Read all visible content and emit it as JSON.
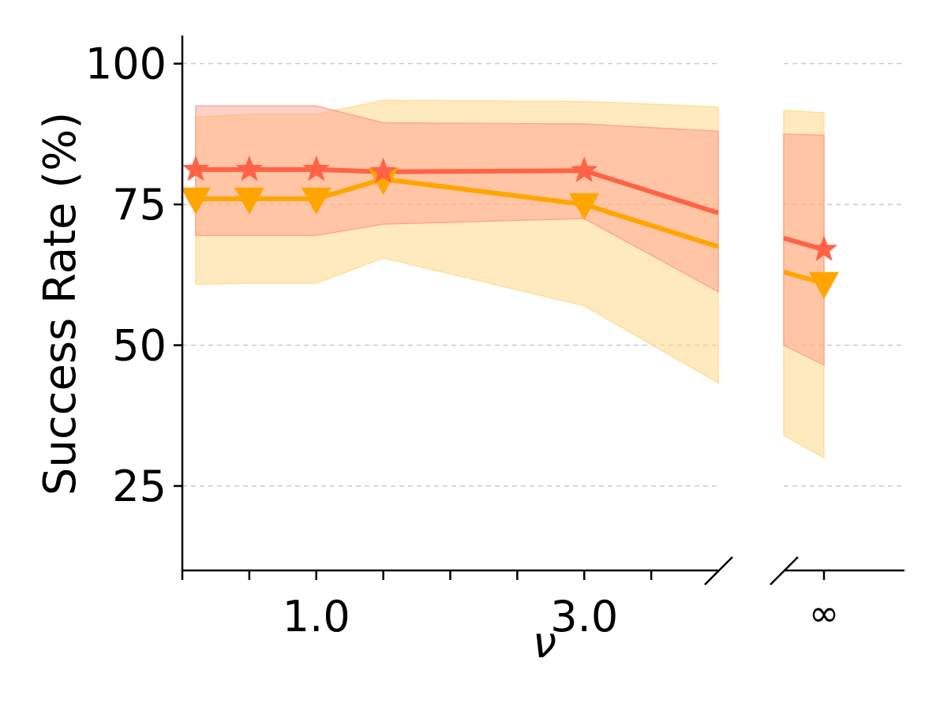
{
  "chart_data": {
    "type": "line",
    "ylabel": "Success Rate (%)",
    "xlabel": "ν",
    "ylim": [
      10,
      105
    ],
    "yticks": [
      25,
      50,
      75,
      100
    ],
    "grid": "horizontal dashed",
    "broken_x_axis": true,
    "left_panel": {
      "xlim": [
        0,
        4.0
      ],
      "xtick_values": [
        0,
        0.5,
        1.0,
        1.5,
        2.0,
        2.5,
        3.0,
        3.5
      ],
      "xtick_labels": [
        {
          "x": 1.0,
          "label": "1.0"
        },
        {
          "x": 3.0,
          "label": "3.0"
        }
      ]
    },
    "right_panel": {
      "xtick_label": "∞"
    },
    "series": [
      {
        "color": "#ff6347",
        "marker": "star",
        "band_color": "#ff9a85",
        "x": [
          0.1,
          0.5,
          1.0,
          1.5,
          3.0,
          4.0
        ],
        "y": [
          81.2,
          81.2,
          81.2,
          80.8,
          81.0,
          73.5
        ],
        "band_upper": [
          92.5,
          92.5,
          92.5,
          89.5,
          89.3,
          88.0
        ],
        "band_lower": [
          69.5,
          69.5,
          69.5,
          71.5,
          72.5,
          59.5
        ],
        "inf": {
          "y": 67.0,
          "y_start": 69.0,
          "band_upper": 87.3,
          "band_upper_start": 87.5,
          "band_lower": 46.5,
          "band_lower_start": 50.0
        }
      },
      {
        "color": "#ffa500",
        "marker": "triangle-down",
        "band_color": "#ffd98a",
        "x": [
          0.1,
          0.5,
          1.0,
          1.5,
          3.0,
          4.0
        ],
        "y": [
          76.0,
          76.0,
          76.0,
          79.5,
          75.0,
          67.5
        ],
        "band_upper": [
          90.5,
          91.0,
          91.0,
          93.5,
          93.3,
          92.3
        ],
        "band_lower": [
          60.8,
          61.0,
          61.0,
          65.5,
          57.0,
          43.3
        ],
        "inf": {
          "y": 61.0,
          "y_start": 63.0,
          "band_upper": 91.3,
          "band_upper_start": 91.7,
          "band_lower": 30.0,
          "band_lower_start": 34.0
        }
      }
    ]
  }
}
